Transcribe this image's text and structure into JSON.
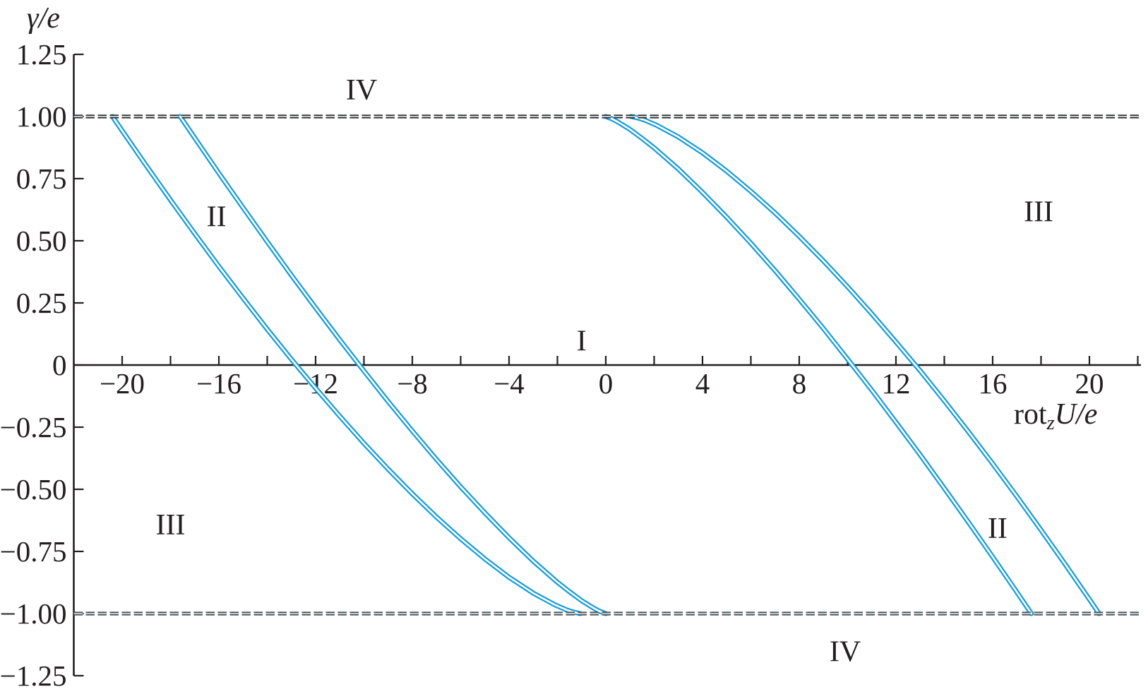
{
  "chart_data": {
    "type": "line",
    "title": "",
    "ylabel": "γ/e",
    "xlabel_parts": {
      "roman": "rot",
      "sub": "z",
      "italic": "U/e"
    },
    "xlim": [
      -22,
      22
    ],
    "ylim": [
      -1.25,
      1.25
    ],
    "grid": false,
    "legend": "none",
    "x_ticks": {
      "labeled_values": [
        -20,
        -16,
        -12,
        -8,
        -4,
        0,
        4,
        8,
        12,
        16,
        20
      ],
      "labels": [
        "−20",
        "−16",
        "−12",
        "−8",
        "−4",
        "0",
        "4",
        "8",
        "12",
        "16",
        "20"
      ],
      "minor_step": 2,
      "minor_range": [
        -20,
        22
      ]
    },
    "y_ticks": {
      "values": [
        1.25,
        1.0,
        0.75,
        0.5,
        0.25,
        0,
        -0.25,
        -0.5,
        -0.75,
        -1.0,
        -1.25
      ],
      "labels": [
        "1.25",
        "1.00",
        "0.75",
        "0.50",
        "0.25",
        "0",
        "−0.25",
        "−0.50",
        "−0.75",
        "−1.00",
        "−1.25"
      ]
    },
    "boundary_lines": [
      {
        "y": 1.0,
        "style": "double-dashed",
        "color": "#2c3134",
        "core": "#d8dcde"
      },
      {
        "y": -1.0,
        "style": "double-dashed",
        "color": "#4d555b",
        "core": "#cfd5d8"
      }
    ],
    "series": [
      {
        "name": "left-outer-boundary",
        "points": [
          [
            -20.4,
            1
          ],
          [
            -20,
            0.943
          ],
          [
            -19,
            0.802
          ],
          [
            -18,
            0.664
          ],
          [
            -17,
            0.529
          ],
          [
            -16,
            0.397
          ],
          [
            -15,
            0.269
          ],
          [
            -14,
            0.144
          ],
          [
            -13,
            0.023
          ],
          [
            -12,
            -0.093
          ],
          [
            -11,
            -0.206
          ],
          [
            -10,
            -0.315
          ],
          [
            -9,
            -0.419
          ],
          [
            -8,
            -0.518
          ],
          [
            -7,
            -0.612
          ],
          [
            -6,
            -0.699
          ],
          [
            -5,
            -0.78
          ],
          [
            -4,
            -0.854
          ],
          [
            -3,
            -0.918
          ],
          [
            -2.1,
            -0.965
          ],
          [
            -1.6,
            -0.986
          ],
          [
            -1.3,
            -0.995
          ],
          [
            -1.05,
            -1
          ]
        ]
      },
      {
        "name": "left-inner-boundary",
        "points": [
          [
            -17.6,
            1
          ],
          [
            -17,
            0.914
          ],
          [
            -16,
            0.772
          ],
          [
            -15,
            0.633
          ],
          [
            -14,
            0.496
          ],
          [
            -13,
            0.361
          ],
          [
            -12,
            0.23
          ],
          [
            -11,
            0.101
          ],
          [
            -10,
            -0.024
          ],
          [
            -9,
            -0.147
          ],
          [
            -8,
            -0.265
          ],
          [
            -7,
            -0.38
          ],
          [
            -6,
            -0.49
          ],
          [
            -5,
            -0.595
          ],
          [
            -4,
            -0.695
          ],
          [
            -3,
            -0.789
          ],
          [
            -2,
            -0.874
          ],
          [
            -1.5,
            -0.912
          ],
          [
            -1,
            -0.948
          ],
          [
            -0.5,
            -0.978
          ],
          [
            -0.25,
            -0.991
          ],
          [
            0,
            -1
          ]
        ]
      },
      {
        "name": "right-inner-boundary",
        "points": [
          [
            0,
            1
          ],
          [
            0.25,
            0.991
          ],
          [
            0.5,
            0.978
          ],
          [
            1,
            0.948
          ],
          [
            1.5,
            0.912
          ],
          [
            2,
            0.874
          ],
          [
            3,
            0.789
          ],
          [
            4,
            0.695
          ],
          [
            5,
            0.595
          ],
          [
            6,
            0.49
          ],
          [
            7,
            0.38
          ],
          [
            8,
            0.265
          ],
          [
            9,
            0.147
          ],
          [
            10,
            0.024
          ],
          [
            11,
            -0.101
          ],
          [
            12,
            -0.23
          ],
          [
            13,
            -0.361
          ],
          [
            14,
            -0.496
          ],
          [
            15,
            -0.633
          ],
          [
            16,
            -0.772
          ],
          [
            17,
            -0.914
          ],
          [
            17.6,
            -1
          ]
        ]
      },
      {
        "name": "right-outer-boundary",
        "points": [
          [
            1.05,
            1
          ],
          [
            1.3,
            0.995
          ],
          [
            1.6,
            0.986
          ],
          [
            2.1,
            0.965
          ],
          [
            3,
            0.918
          ],
          [
            4,
            0.854
          ],
          [
            5,
            0.78
          ],
          [
            6,
            0.699
          ],
          [
            7,
            0.612
          ],
          [
            8,
            0.518
          ],
          [
            9,
            0.419
          ],
          [
            10,
            0.315
          ],
          [
            11,
            0.206
          ],
          [
            12,
            0.093
          ],
          [
            13,
            -0.023
          ],
          [
            14,
            -0.144
          ],
          [
            15,
            -0.269
          ],
          [
            16,
            -0.397
          ],
          [
            17,
            -0.529
          ],
          [
            18,
            -0.664
          ],
          [
            19,
            -0.802
          ],
          [
            20,
            -0.943
          ],
          [
            20.4,
            -1
          ]
        ]
      }
    ],
    "region_labels": [
      {
        "text": "IV",
        "x": -10.1,
        "y": 1.11
      },
      {
        "text": "II",
        "x": -16.1,
        "y": 0.6
      },
      {
        "text": "III",
        "x": 17.9,
        "y": 0.62
      },
      {
        "text": "I",
        "x": -1.0,
        "y": 0.1
      },
      {
        "text": "III",
        "x": -18.0,
        "y": -0.64
      },
      {
        "text": "II",
        "x": 16.2,
        "y": -0.655
      },
      {
        "text": "IV",
        "x": 9.9,
        "y": -1.15
      }
    ],
    "style": {
      "curve_color": "#149bd9",
      "curve_core": "#ffffff",
      "axis_color": "#231f20",
      "background": "#ffffff"
    }
  }
}
